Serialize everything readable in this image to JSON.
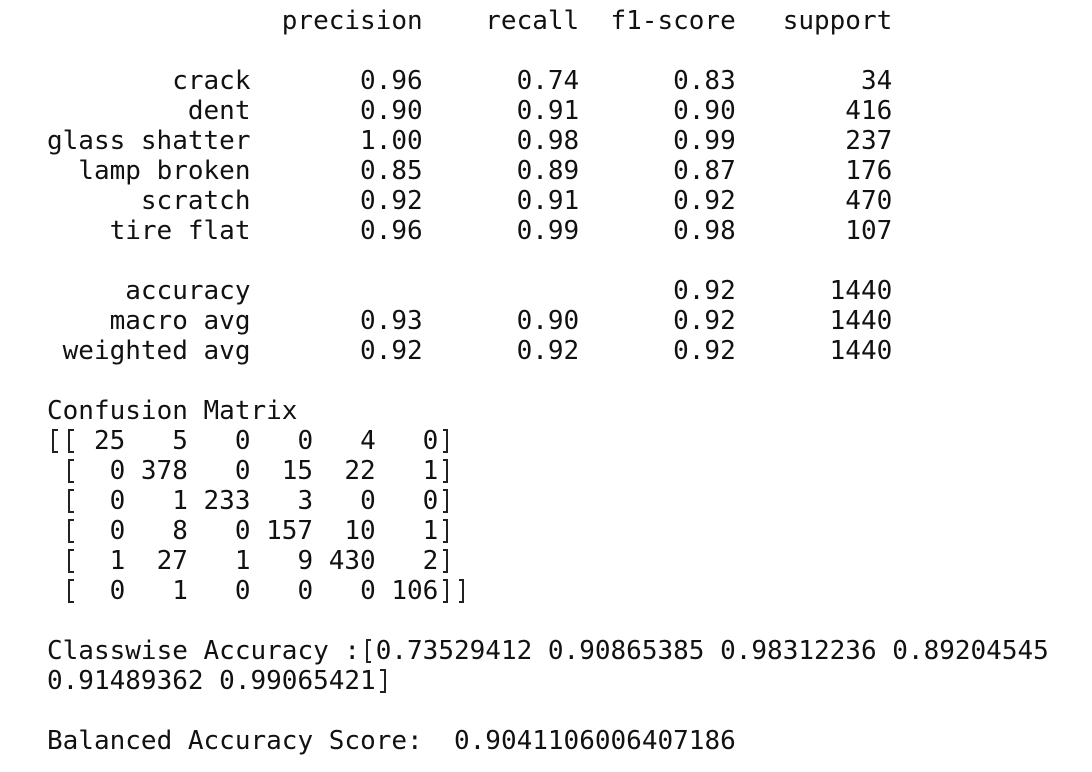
{
  "report": {
    "header": [
      "precision",
      "recall",
      "f1-score",
      "support"
    ],
    "rows": [
      {
        "label": "crack",
        "precision": "0.96",
        "recall": "0.74",
        "f1_score": "0.83",
        "support": "34"
      },
      {
        "label": "dent",
        "precision": "0.90",
        "recall": "0.91",
        "f1_score": "0.90",
        "support": "416"
      },
      {
        "label": "glass shatter",
        "precision": "1.00",
        "recall": "0.98",
        "f1_score": "0.99",
        "support": "237"
      },
      {
        "label": "lamp broken",
        "precision": "0.85",
        "recall": "0.89",
        "f1_score": "0.87",
        "support": "176"
      },
      {
        "label": "scratch",
        "precision": "0.92",
        "recall": "0.91",
        "f1_score": "0.92",
        "support": "470"
      },
      {
        "label": "tire flat",
        "precision": "0.96",
        "recall": "0.99",
        "f1_score": "0.98",
        "support": "107"
      }
    ],
    "summary": [
      {
        "label": "accuracy",
        "f1_score": "0.92",
        "support": "1440"
      },
      {
        "label": "macro avg",
        "precision": "0.93",
        "recall": "0.90",
        "f1_score": "0.92",
        "support": "1440"
      },
      {
        "label": "weighted avg",
        "precision": "0.92",
        "recall": "0.92",
        "f1_score": "0.92",
        "support": "1440"
      }
    ]
  },
  "confusion_matrix": {
    "title": "Confusion Matrix",
    "rows": [
      [
        25,
        5,
        0,
        0,
        4,
        0
      ],
      [
        0,
        378,
        0,
        15,
        22,
        1
      ],
      [
        0,
        1,
        233,
        3,
        0,
        0
      ],
      [
        0,
        8,
        0,
        157,
        10,
        1
      ],
      [
        1,
        27,
        1,
        9,
        430,
        2
      ],
      [
        0,
        1,
        0,
        0,
        0,
        106
      ]
    ]
  },
  "classwise_accuracy": {
    "label": "Classwise Accuracy :",
    "values": [
      "0.73529412",
      "0.90865385",
      "0.98312236",
      "0.89204545",
      "0.91489362",
      "0.99065421"
    ]
  },
  "balanced_accuracy": {
    "label": "Balanced Accuracy Score:",
    "value": "0.9041106006407186"
  }
}
